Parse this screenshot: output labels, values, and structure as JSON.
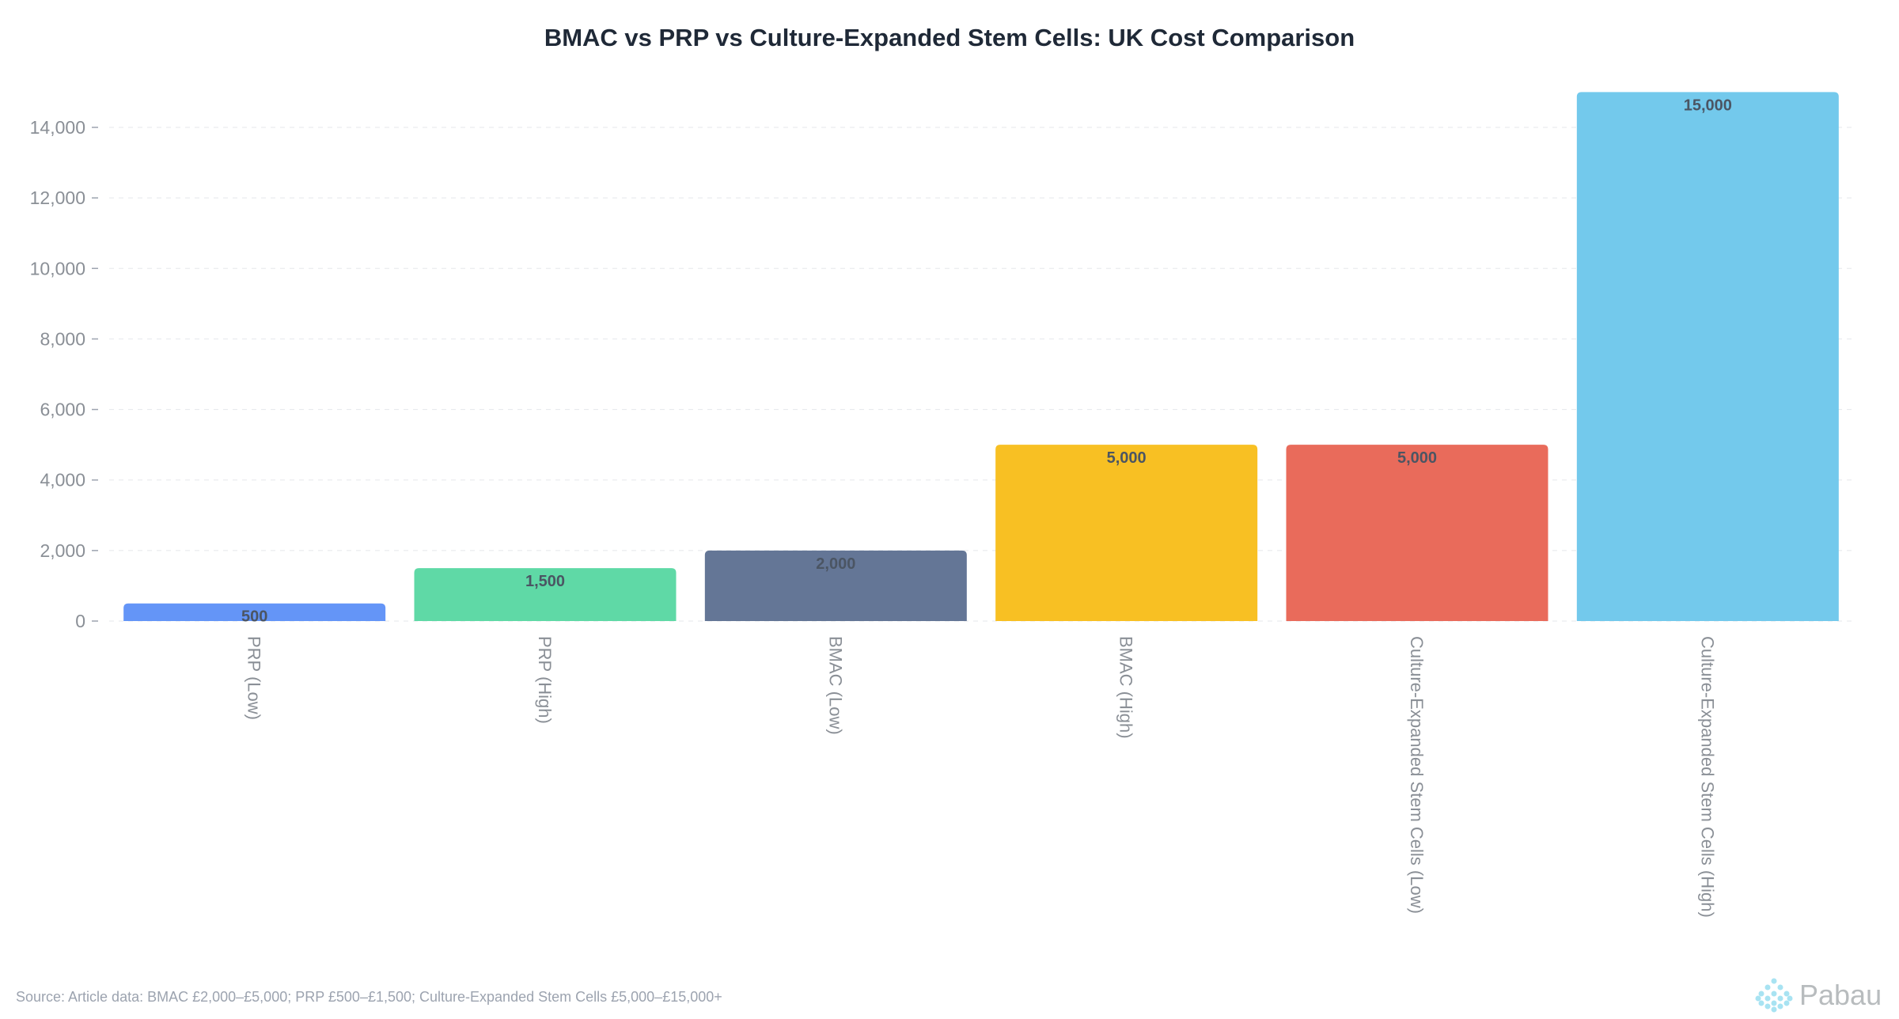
{
  "chart_data": {
    "type": "bar",
    "title": "BMAC vs PRP vs Culture-Expanded Stem Cells: UK Cost Comparison",
    "categories": [
      "PRP (Low)",
      "PRP (High)",
      "BMAC (Low)",
      "BMAC (High)",
      "Culture-Expanded Stem Cells (Low)",
      "Culture-Expanded Stem Cells (High)"
    ],
    "values": [
      500,
      1500,
      2000,
      5000,
      5000,
      15000
    ],
    "data_labels": [
      "500",
      "1,500",
      "2,000",
      "5,000",
      "5,000",
      "15,000"
    ],
    "colors": [
      "#6495f7",
      "#5fd9a6",
      "#647696",
      "#f8c023",
      "#e96b5b",
      "#73c9ec"
    ],
    "yticks": [
      0,
      2000,
      4000,
      6000,
      8000,
      10000,
      12000,
      14000
    ],
    "ytick_labels": [
      "0",
      "2,000",
      "4,000",
      "6,000",
      "8,000",
      "10,000",
      "12,000",
      "14,000"
    ],
    "ylim": [
      0,
      15000
    ],
    "xlabel": "",
    "ylabel": "",
    "grid": "horizontal dashed",
    "legend": "none"
  },
  "source": "Source: Article data: BMAC £2,000–£5,000; PRP £500–£1,500; Culture-Expanded Stem Cells £5,000–£15,000+",
  "logo": {
    "text": "Pabau",
    "color": "#a8e3f2"
  }
}
